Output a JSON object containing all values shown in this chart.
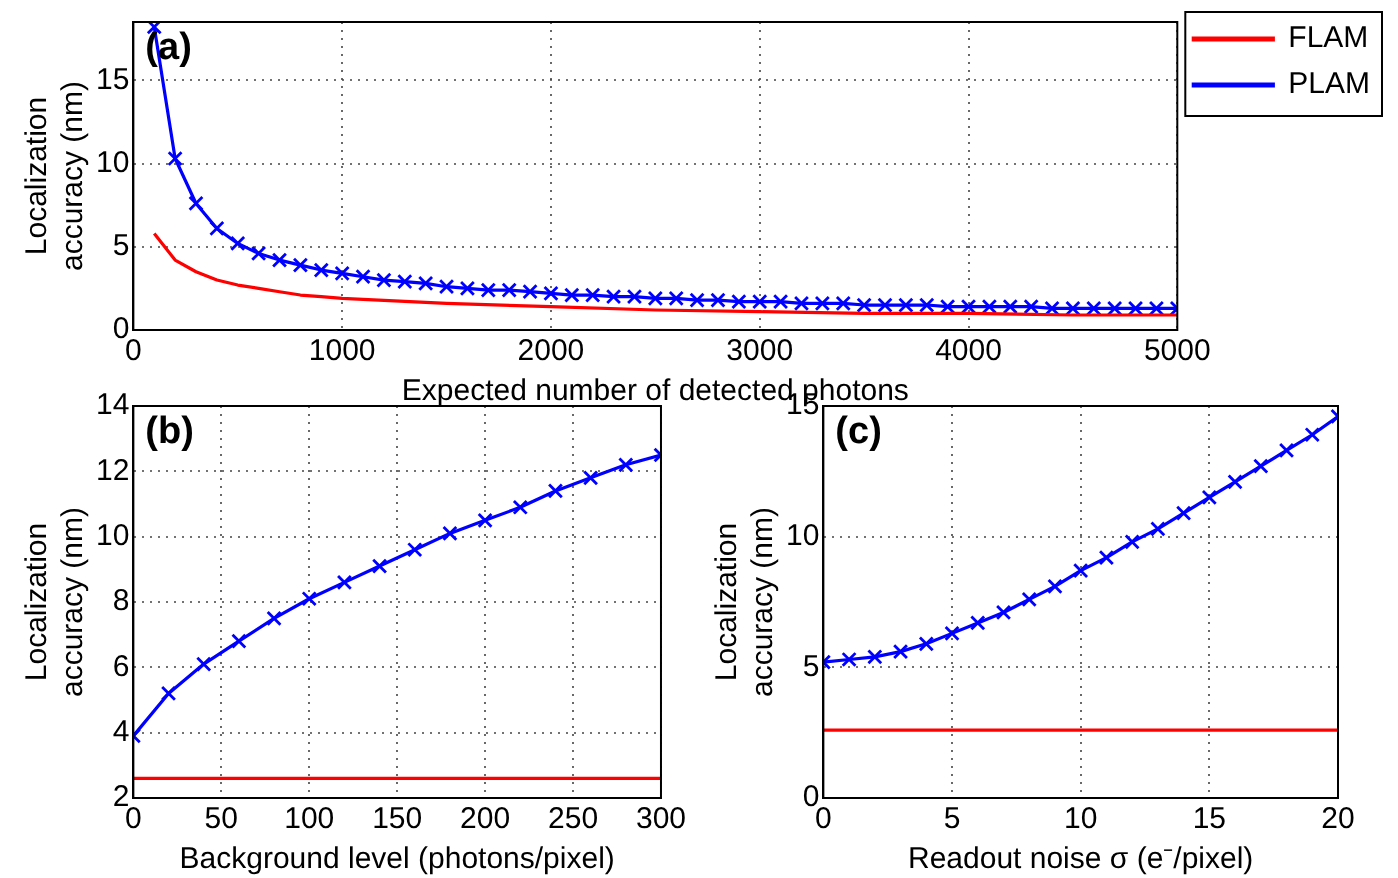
{
  "chart_data": [
    {
      "type": "line",
      "xlabel": "Expected number of detected photons",
      "ylabel": "Localization accuracy (nm)",
      "annotations": [
        "(a)"
      ],
      "xlim": [
        0,
        5000
      ],
      "xticks": [
        0,
        1000,
        2000,
        3000,
        4000,
        5000
      ],
      "ylim": [
        0,
        18.5
      ],
      "yticks": [
        0,
        5,
        10,
        15
      ],
      "grid": true,
      "legend": "top right",
      "series": [
        {
          "name": "FLAM",
          "color": "#ff0000",
          "marker": "none",
          "x": [
            100,
            200,
            300,
            400,
            500,
            600,
            700,
            800,
            900,
            1000,
            1500,
            2000,
            2500,
            3000,
            3500,
            4000,
            4500,
            5000
          ],
          "values": [
            5.8,
            4.2,
            3.5,
            3.0,
            2.7,
            2.5,
            2.3,
            2.1,
            2.0,
            1.9,
            1.6,
            1.4,
            1.2,
            1.1,
            1.0,
            1.0,
            0.9,
            0.9
          ]
        },
        {
          "name": "PLAM",
          "color": "#0000ff",
          "marker": "cross",
          "x": [
            100,
            200,
            300,
            400,
            500,
            600,
            700,
            800,
            900,
            1000,
            1100,
            1200,
            1300,
            1400,
            1500,
            1600,
            1700,
            1800,
            1900,
            2000,
            2100,
            2200,
            2300,
            2400,
            2500,
            2600,
            2700,
            2800,
            2900,
            3000,
            3100,
            3200,
            3300,
            3400,
            3500,
            3600,
            3700,
            3800,
            3900,
            4000,
            4100,
            4200,
            4300,
            4400,
            4500,
            4600,
            4700,
            4800,
            4900,
            5000
          ],
          "values": [
            18.2,
            10.3,
            7.6,
            6.1,
            5.2,
            4.6,
            4.2,
            3.9,
            3.6,
            3.4,
            3.2,
            3.0,
            2.9,
            2.8,
            2.6,
            2.5,
            2.4,
            2.4,
            2.3,
            2.2,
            2.1,
            2.1,
            2.0,
            2.0,
            1.9,
            1.9,
            1.8,
            1.8,
            1.7,
            1.7,
            1.7,
            1.6,
            1.6,
            1.6,
            1.5,
            1.5,
            1.5,
            1.5,
            1.4,
            1.4,
            1.4,
            1.4,
            1.4,
            1.3,
            1.3,
            1.3,
            1.3,
            1.3,
            1.3,
            1.3
          ]
        }
      ]
    },
    {
      "type": "line",
      "xlabel": "Background level (photons/pixel)",
      "ylabel": "Localization accuracy (nm)",
      "annotations": [
        "(b)"
      ],
      "xlim": [
        0,
        300
      ],
      "xticks": [
        0,
        50,
        100,
        150,
        200,
        250,
        300
      ],
      "ylim": [
        2,
        14
      ],
      "yticks": [
        2,
        4,
        6,
        8,
        10,
        12,
        14
      ],
      "grid": true,
      "series": [
        {
          "color": "#ff0000",
          "marker": "none",
          "x": [
            0,
            300
          ],
          "values": [
            2.6,
            2.6
          ]
        },
        {
          "color": "#0000ff",
          "marker": "cross",
          "x": [
            0,
            20,
            40,
            60,
            80,
            100,
            120,
            140,
            160,
            180,
            200,
            220,
            240,
            260,
            280,
            300
          ],
          "values": [
            3.9,
            5.2,
            6.1,
            6.8,
            7.5,
            8.1,
            8.6,
            9.1,
            9.6,
            10.1,
            10.5,
            10.9,
            11.4,
            11.8,
            12.2,
            12.5
          ]
        }
      ]
    },
    {
      "type": "line",
      "xlabel": "Readout noise σ (e⁻/pixel)",
      "ylabel": "Localization accuracy (nm)",
      "annotations": [
        "(c)"
      ],
      "xlim": [
        0,
        20
      ],
      "xticks": [
        0,
        5,
        10,
        15,
        20
      ],
      "ylim": [
        0,
        15
      ],
      "yticks": [
        0,
        5,
        10,
        15
      ],
      "grid": true,
      "series": [
        {
          "color": "#ff0000",
          "marker": "none",
          "x": [
            0,
            20
          ],
          "values": [
            2.6,
            2.6
          ]
        },
        {
          "color": "#0000ff",
          "marker": "cross",
          "x": [
            0,
            1,
            2,
            3,
            4,
            5,
            6,
            7,
            8,
            9,
            10,
            11,
            12,
            13,
            14,
            15,
            16,
            17,
            18,
            19,
            20
          ],
          "values": [
            5.2,
            5.3,
            5.4,
            5.6,
            5.9,
            6.3,
            6.7,
            7.1,
            7.6,
            8.1,
            8.7,
            9.2,
            9.8,
            10.3,
            10.9,
            11.5,
            12.1,
            12.7,
            13.3,
            13.9,
            14.6
          ]
        }
      ]
    }
  ]
}
